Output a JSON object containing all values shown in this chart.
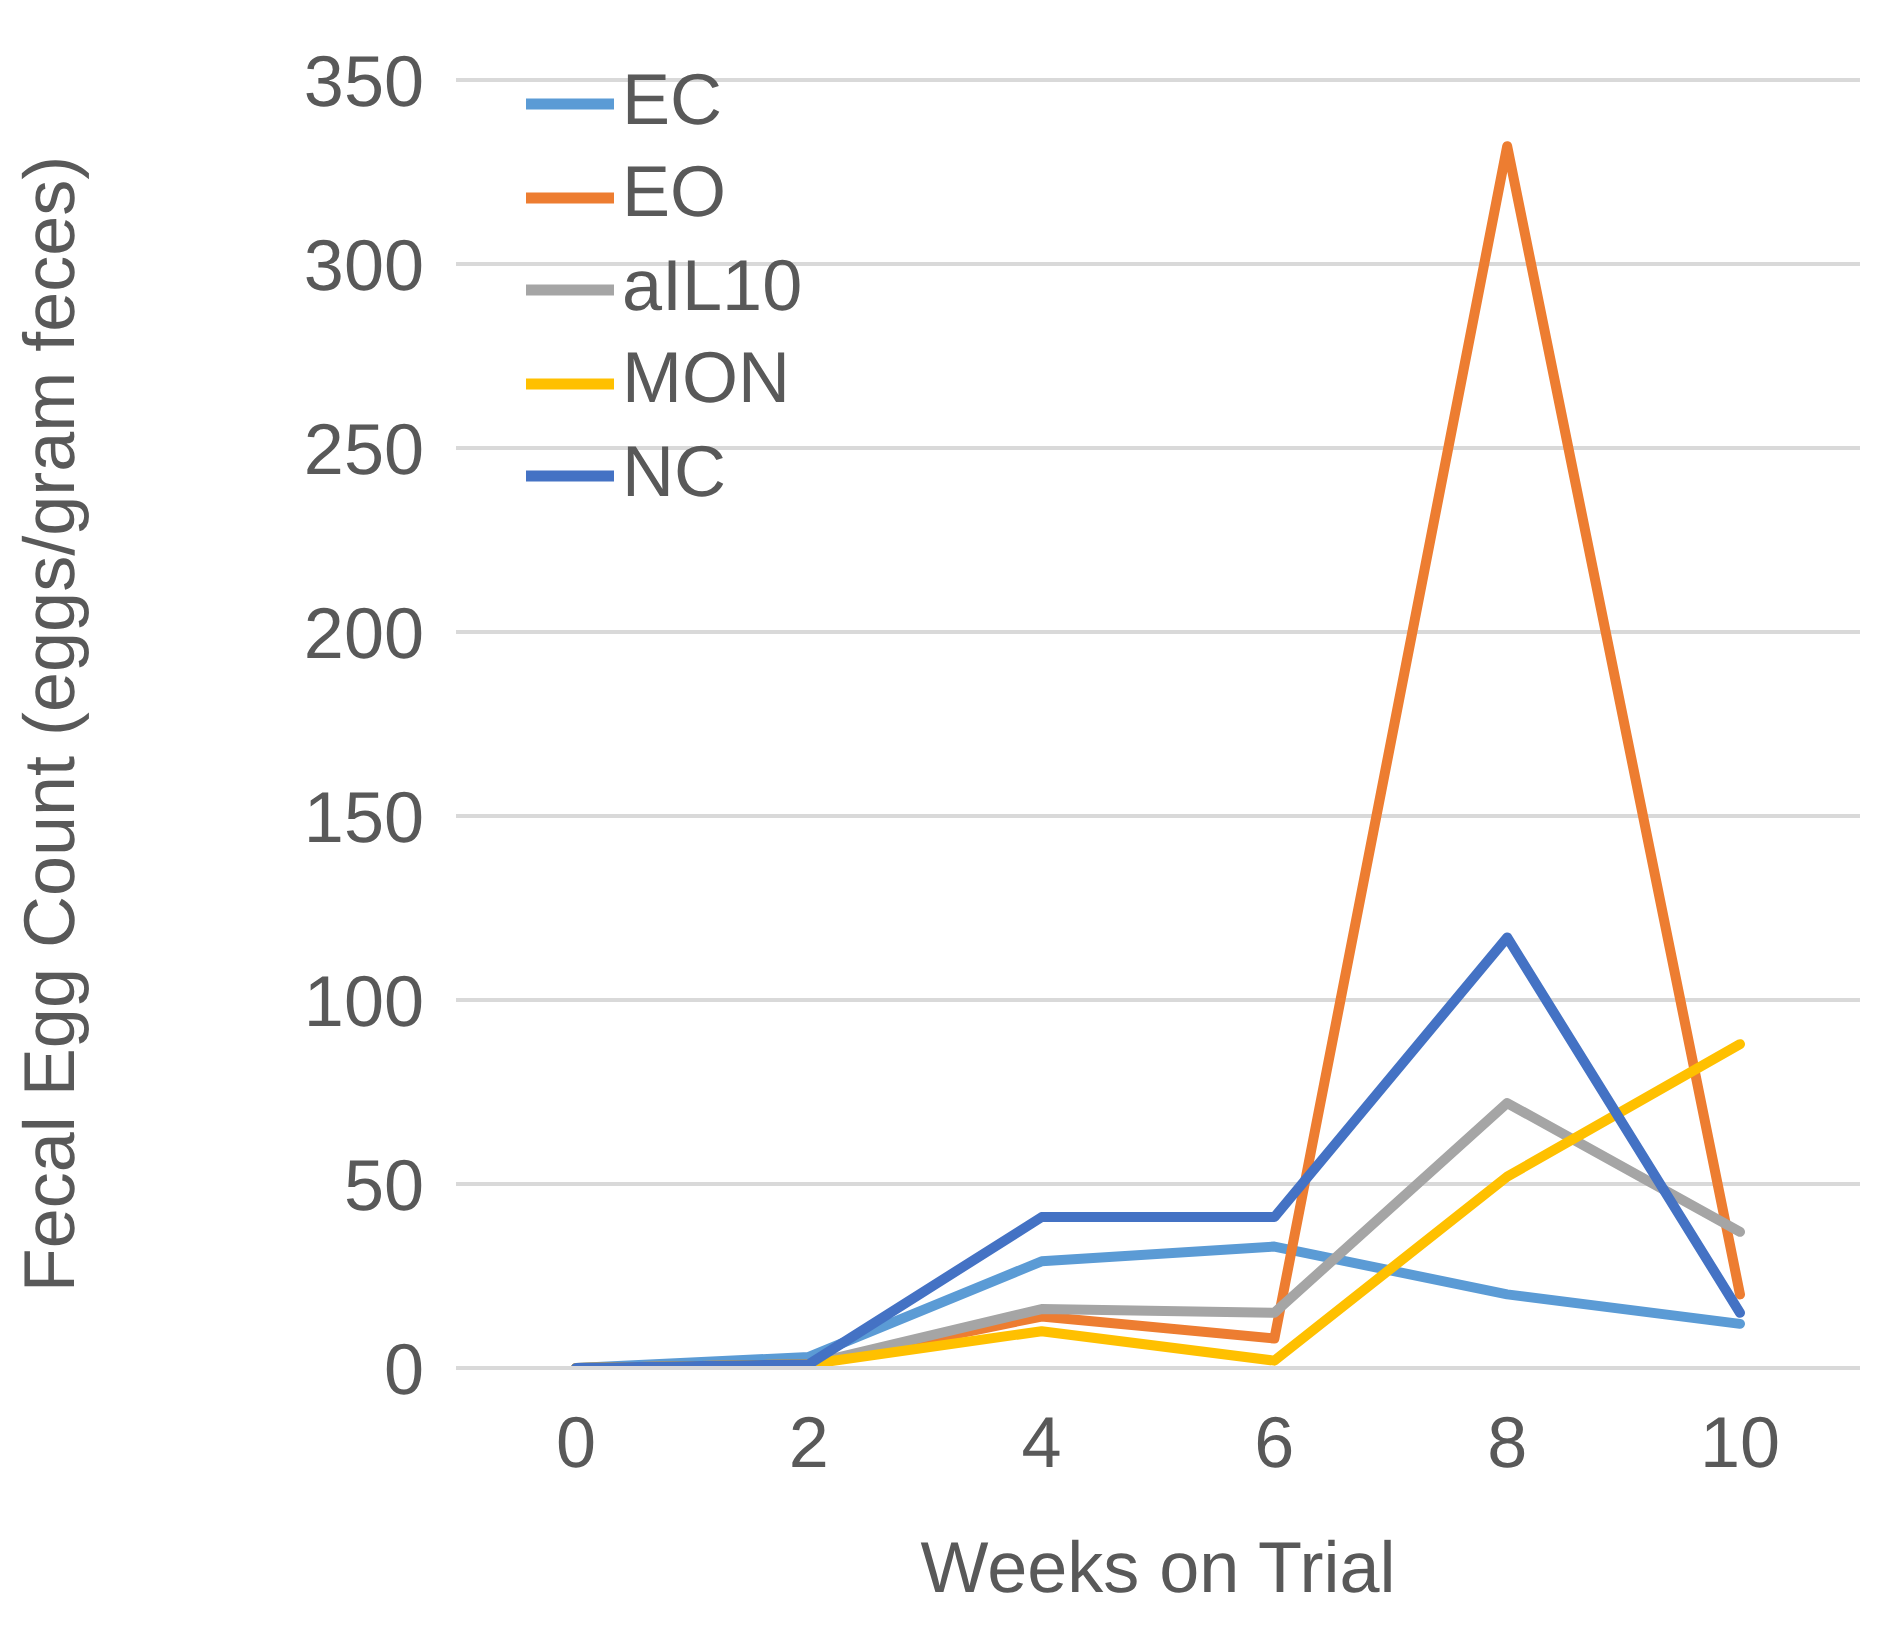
{
  "chart_data": {
    "type": "line",
    "xlabel": "Weeks on Trial",
    "ylabel": "Fecal Egg Count (eggs/gram feces)",
    "categories": [
      "0",
      "2",
      "4",
      "6",
      "8",
      "10"
    ],
    "series": [
      {
        "name": "EC",
        "color": "#5b9bd5",
        "values": [
          0,
          3,
          29,
          33,
          20,
          12
        ]
      },
      {
        "name": "EO",
        "color": "#ed7d31",
        "values": [
          0,
          1,
          14,
          8,
          332,
          20
        ]
      },
      {
        "name": "aIL10",
        "color": "#a5a5a5",
        "values": [
          0,
          1,
          16,
          15,
          72,
          37
        ]
      },
      {
        "name": "MON",
        "color": "#ffc000",
        "values": [
          0,
          1,
          10,
          2,
          52,
          88
        ]
      },
      {
        "name": "NC",
        "color": "#4472c4",
        "values": [
          0,
          1,
          41,
          41,
          117,
          15
        ]
      }
    ],
    "ylim": [
      0,
      350
    ],
    "yticks": [
      0,
      50,
      100,
      150,
      200,
      250,
      300,
      350
    ],
    "grid": "y",
    "legend": "top left",
    "marker": "none",
    "line_style": "solid"
  }
}
